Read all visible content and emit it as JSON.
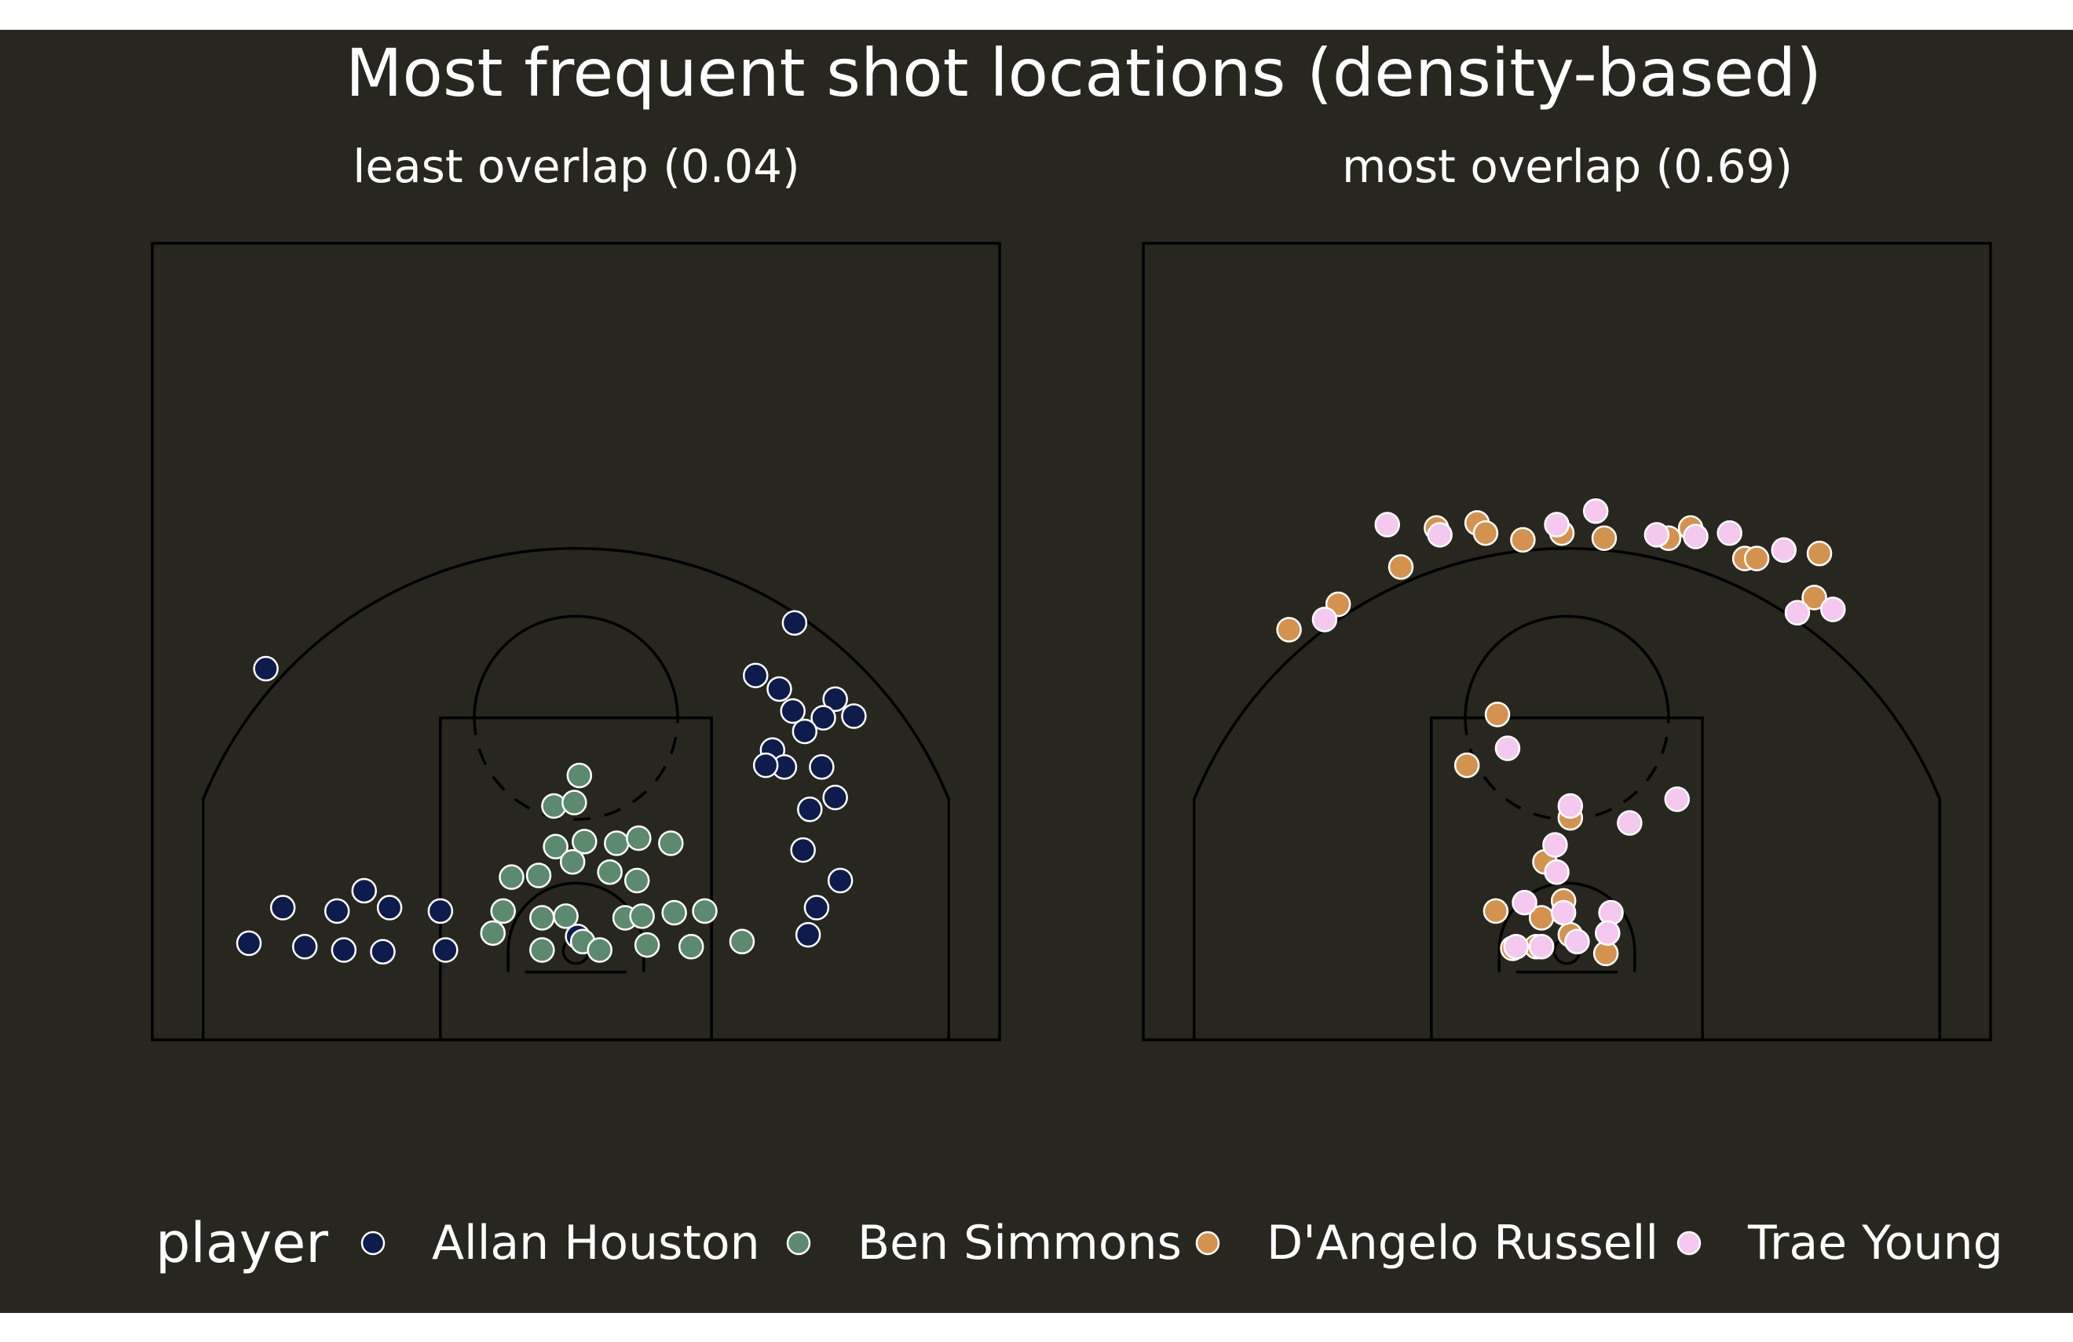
{
  "chart_data": {
    "type": "scatter",
    "title": "Most frequent shot locations (density-based)",
    "background_color": "#27271f",
    "line_color": "#000000",
    "legend": {
      "title": "player",
      "position": "bottom",
      "entries": [
        {
          "name": "Allan Houston",
          "color": "#0d1b4d"
        },
        {
          "name": "Ben Simmons",
          "color": "#5b8a6e"
        },
        {
          "name": "D'Angelo Russell",
          "color": "#d4924f"
        },
        {
          "name": "Trae Young",
          "color": "#f5c8f0"
        }
      ]
    },
    "x_range": [
      -25,
      25
    ],
    "y_range": [
      0,
      47
    ],
    "panels": [
      {
        "title": "least overlap (0.04)",
        "series": [
          {
            "name": "Allan Houston",
            "points": [
              [
                -18.3,
                21.9
              ],
              [
                -19.3,
                5.7
              ],
              [
                -16.0,
                5.5
              ],
              [
                -17.3,
                7.8
              ],
              [
                -14.1,
                7.6
              ],
              [
                -12.5,
                8.8
              ],
              [
                -13.7,
                5.3
              ],
              [
                -11.4,
                5.2
              ],
              [
                -11.0,
                7.8
              ],
              [
                -8.0,
                7.6
              ],
              [
                -7.7,
                5.3
              ],
              [
                0.1,
                6.1
              ],
              [
                12.9,
                24.6
              ],
              [
                10.6,
                21.5
              ],
              [
                12.0,
                20.7
              ],
              [
                15.3,
                20.1
              ],
              [
                16.4,
                19.1
              ],
              [
                14.6,
                19.0
              ],
              [
                12.8,
                19.4
              ],
              [
                13.5,
                18.2
              ],
              [
                11.6,
                17.1
              ],
              [
                14.5,
                16.1
              ],
              [
                12.3,
                16.1
              ],
              [
                11.2,
                16.2
              ],
              [
                13.8,
                13.6
              ],
              [
                15.3,
                14.3
              ],
              [
                13.4,
                11.2
              ],
              [
                15.6,
                9.4
              ],
              [
                14.2,
                7.8
              ],
              [
                13.7,
                6.2
              ]
            ]
          },
          {
            "name": "Ben Simmons",
            "points": [
              [
                0.2,
                15.6
              ],
              [
                -1.3,
                13.8
              ],
              [
                -0.1,
                14.0
              ],
              [
                -1.2,
                11.4
              ],
              [
                0.5,
                11.7
              ],
              [
                2.4,
                11.6
              ],
              [
                3.7,
                11.9
              ],
              [
                5.6,
                11.6
              ],
              [
                -0.2,
                10.5
              ],
              [
                -2.2,
                9.7
              ],
              [
                -3.8,
                9.6
              ],
              [
                2.0,
                9.9
              ],
              [
                3.6,
                9.4
              ],
              [
                -4.3,
                7.6
              ],
              [
                -2.0,
                7.2
              ],
              [
                -0.6,
                7.3
              ],
              [
                2.9,
                7.2
              ],
              [
                3.9,
                7.3
              ],
              [
                5.8,
                7.5
              ],
              [
                7.6,
                7.6
              ],
              [
                -4.9,
                6.3
              ],
              [
                -2.0,
                5.3
              ],
              [
                0.4,
                5.8
              ],
              [
                1.4,
                5.3
              ],
              [
                4.2,
                5.6
              ],
              [
                6.8,
                5.5
              ],
              [
                9.8,
                5.8
              ]
            ]
          }
        ]
      },
      {
        "title": "most overlap (0.69)",
        "series": [
          {
            "name": "D'Angelo Russell",
            "points": [
              [
                -16.4,
                24.2
              ],
              [
                -13.5,
                25.7
              ],
              [
                -9.8,
                27.9
              ],
              [
                -7.7,
                30.2
              ],
              [
                -5.3,
                30.5
              ],
              [
                -4.8,
                29.9
              ],
              [
                -2.6,
                29.5
              ],
              [
                -0.3,
                29.9
              ],
              [
                2.2,
                29.6
              ],
              [
                6.0,
                29.6
              ],
              [
                7.3,
                30.2
              ],
              [
                10.5,
                28.4
              ],
              [
                11.2,
                28.4
              ],
              [
                14.9,
                28.7
              ],
              [
                14.6,
                26.1
              ],
              [
                -4.1,
                19.2
              ],
              [
                -5.9,
                16.2
              ],
              [
                0.2,
                13.1
              ],
              [
                -1.3,
                10.5
              ],
              [
                -4.2,
                7.6
              ],
              [
                -1.5,
                7.2
              ],
              [
                -0.2,
                8.2
              ],
              [
                -3.2,
                5.4
              ],
              [
                -1.8,
                5.5
              ],
              [
                0.2,
                6.2
              ],
              [
                2.3,
                5.1
              ]
            ]
          },
          {
            "name": "Trae Young",
            "points": [
              [
                -14.3,
                24.8
              ],
              [
                -10.6,
                30.4
              ],
              [
                -7.5,
                29.8
              ],
              [
                -0.6,
                30.4
              ],
              [
                1.7,
                31.2
              ],
              [
                5.3,
                29.8
              ],
              [
                7.6,
                29.7
              ],
              [
                9.6,
                29.9
              ],
              [
                12.8,
                28.9
              ],
              [
                13.6,
                25.2
              ],
              [
                15.7,
                25.4
              ],
              [
                -3.5,
                17.2
              ],
              [
                0.2,
                13.8
              ],
              [
                3.7,
                12.8
              ],
              [
                6.5,
                14.2
              ],
              [
                -0.7,
                11.5
              ],
              [
                -0.6,
                9.9
              ],
              [
                -2.5,
                8.1
              ],
              [
                -0.2,
                7.5
              ],
              [
                2.6,
                7.5
              ],
              [
                -3.0,
                5.5
              ],
              [
                -1.5,
                5.5
              ],
              [
                0.6,
                5.8
              ],
              [
                2.4,
                6.3
              ]
            ]
          }
        ]
      }
    ]
  }
}
